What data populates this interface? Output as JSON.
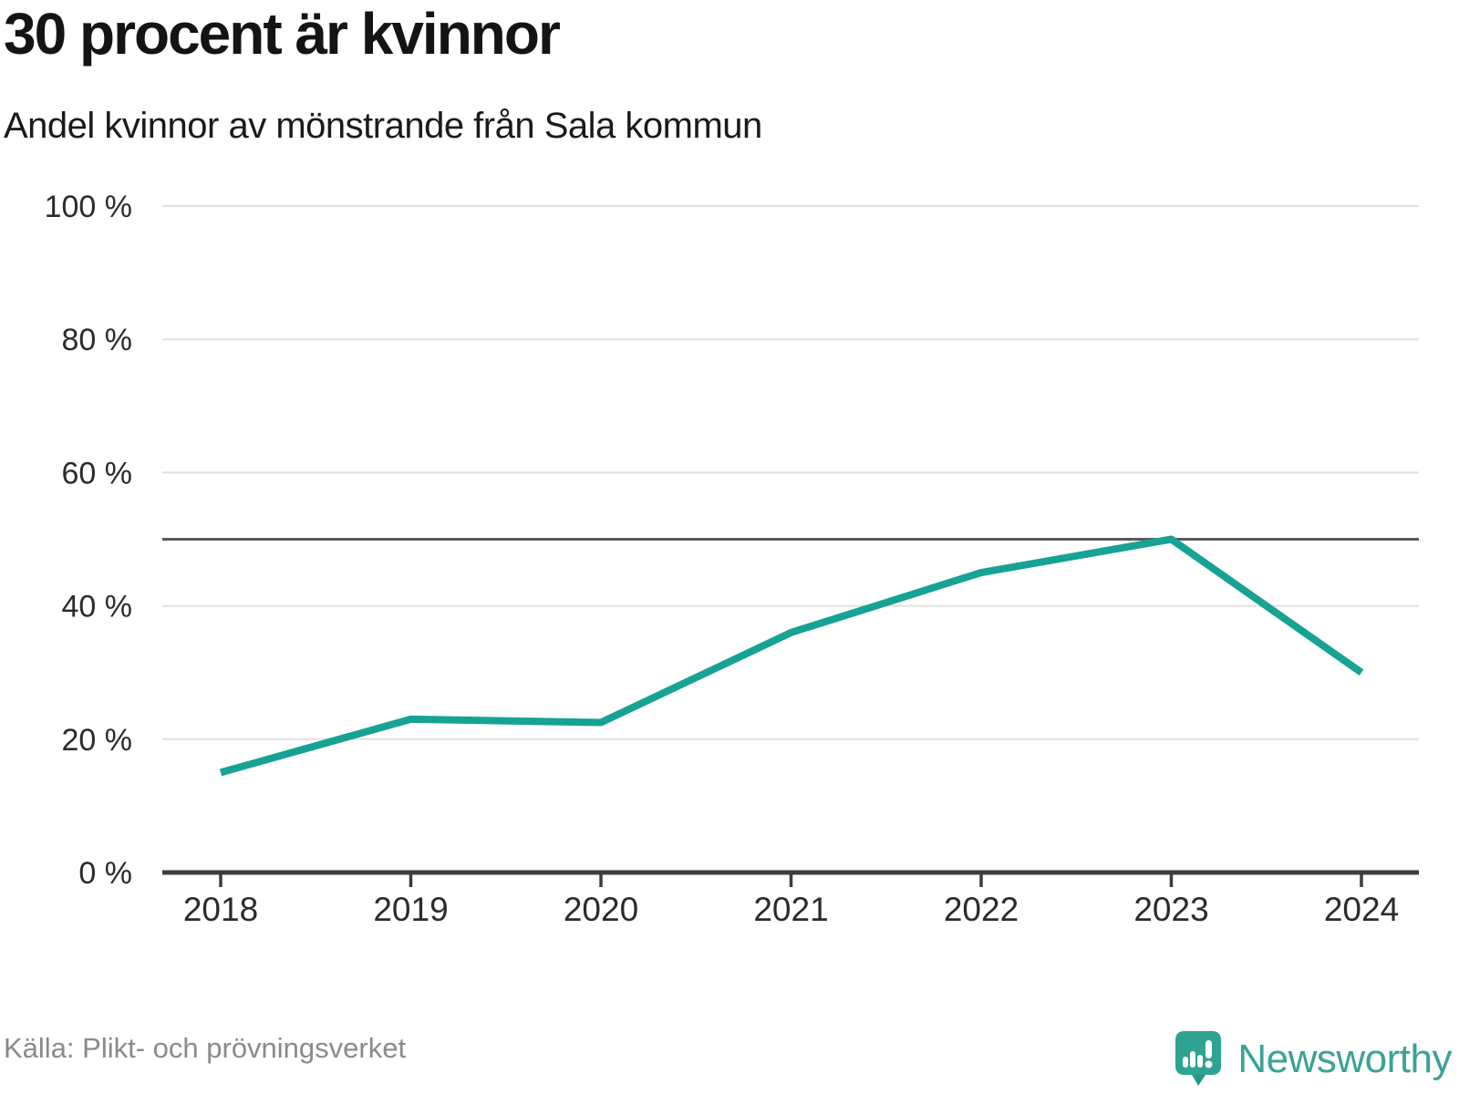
{
  "header": {
    "title": "30 procent är kvinnor",
    "subtitle": "Andel kvinnor av mönstrande från Sala kommun"
  },
  "footer": {
    "source": "Källa: Plikt- och prövningsverket",
    "brand": "Newsworthy"
  },
  "chart_data": {
    "type": "line",
    "title": "30 procent är kvinnor",
    "subtitle": "Andel kvinnor av mönstrande från Sala kommun",
    "categories": [
      "2018",
      "2019",
      "2020",
      "2021",
      "2022",
      "2023",
      "2024"
    ],
    "series": [
      {
        "name": "Andel kvinnor av mönstrande",
        "values": [
          15,
          23,
          22.5,
          36,
          45,
          50,
          30
        ]
      }
    ],
    "ylim": [
      0,
      100
    ],
    "yticks": [
      0,
      20,
      40,
      60,
      80,
      100
    ],
    "ytick_suffix": " %",
    "reference_line": 50,
    "grid": "horizontal",
    "legend": "none",
    "colors": {
      "line": "#16a294",
      "grid": "#e0e0e0",
      "reference": "#5a5a5a",
      "axis": "#3c3c3c",
      "brand_icon": "#2ea392",
      "brand_icon_dark": "#22907f",
      "brand_text": "#3aa296"
    }
  }
}
